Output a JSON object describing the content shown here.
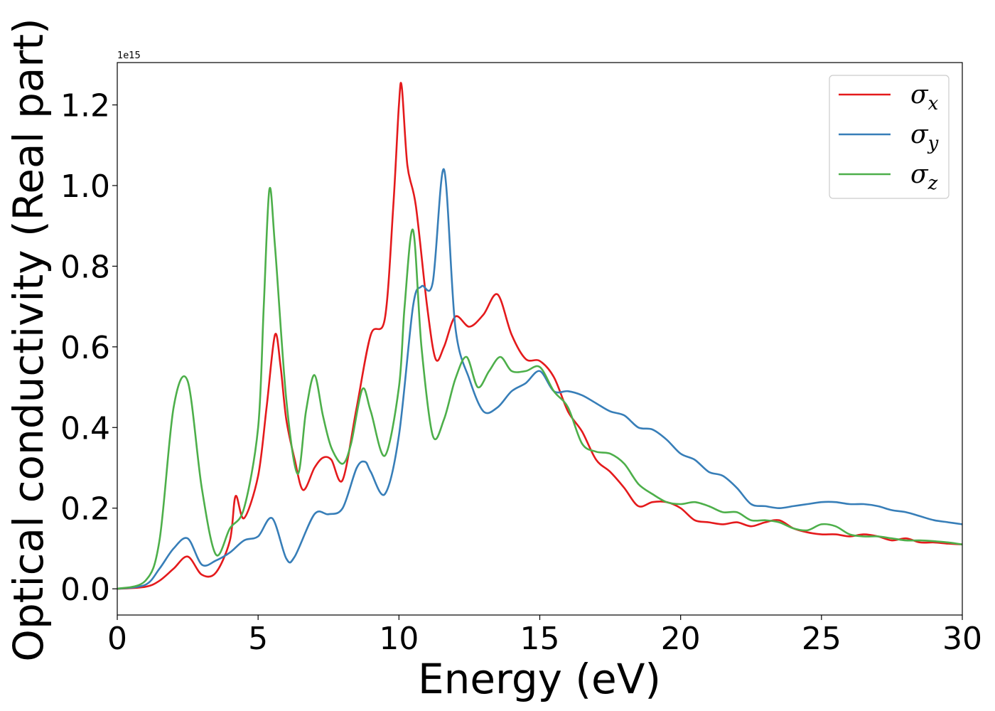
{
  "chart_data": {
    "type": "line",
    "title": "",
    "xlabel": "Energy (eV)",
    "ylabel": "Optical conductivity (Real part)",
    "y_offset_label": "1e15",
    "xlim": [
      0,
      30
    ],
    "ylim": [
      -0.065,
      1.305
    ],
    "x_ticks": [
      0,
      5,
      10,
      15,
      20,
      25,
      30
    ],
    "x_tick_labels": [
      "0",
      "5",
      "10",
      "15",
      "20",
      "25",
      "30"
    ],
    "y_ticks": [
      0.0,
      0.2,
      0.4,
      0.6,
      0.8,
      1.0,
      1.2
    ],
    "y_tick_labels": [
      "0.0",
      "0.2",
      "0.4",
      "0.6",
      "0.8",
      "1.0",
      "1.2"
    ],
    "grid": false,
    "legend_position": "top-right",
    "series": [
      {
        "name": "σx",
        "symbol": "σ",
        "subscript": "x",
        "color": "#e41a1c",
        "x": [
          0,
          1,
          1.5,
          2,
          2.5,
          3,
          3.5,
          4,
          4.2,
          4.5,
          5,
          5.3,
          5.6,
          5.8,
          6,
          6.3,
          6.6,
          7,
          7.3,
          7.6,
          8,
          8.5,
          9,
          9.5,
          9.8,
          10,
          10.1,
          10.3,
          10.6,
          11,
          11.3,
          11.6,
          12,
          12.5,
          13,
          13.5,
          14,
          14.5,
          15,
          15.5,
          16,
          16.5,
          17,
          17.5,
          18,
          18.5,
          19,
          19.5,
          20,
          20.5,
          21,
          21.5,
          22,
          22.5,
          23,
          23.5,
          24,
          24.5,
          25,
          25.5,
          26,
          26.5,
          27,
          27.5,
          28,
          28.5,
          29,
          29.5,
          30
        ],
        "y": [
          0.0,
          0.005,
          0.02,
          0.05,
          0.08,
          0.035,
          0.04,
          0.12,
          0.23,
          0.175,
          0.28,
          0.45,
          0.63,
          0.55,
          0.42,
          0.32,
          0.245,
          0.3,
          0.325,
          0.32,
          0.27,
          0.45,
          0.63,
          0.67,
          0.95,
          1.2,
          1.245,
          1.05,
          0.95,
          0.7,
          0.57,
          0.6,
          0.675,
          0.65,
          0.68,
          0.73,
          0.63,
          0.57,
          0.565,
          0.525,
          0.44,
          0.39,
          0.32,
          0.29,
          0.25,
          0.205,
          0.215,
          0.215,
          0.2,
          0.17,
          0.165,
          0.16,
          0.165,
          0.155,
          0.165,
          0.17,
          0.15,
          0.14,
          0.135,
          0.135,
          0.13,
          0.135,
          0.13,
          0.12,
          0.125,
          0.115,
          0.115,
          0.112,
          0.11
        ]
      },
      {
        "name": "σy",
        "symbol": "σ",
        "subscript": "y",
        "color": "#377eb8",
        "x": [
          0,
          1,
          1.5,
          2,
          2.5,
          3,
          3.5,
          4,
          4.5,
          5,
          5.5,
          6,
          6.3,
          7,
          7.5,
          8,
          8.5,
          8.8,
          9,
          9.5,
          10,
          10.5,
          10.8,
          11.2,
          11.6,
          12,
          12.5,
          13,
          13.5,
          14,
          14.5,
          15,
          15.5,
          16,
          16.5,
          17,
          17.5,
          18,
          18.5,
          19,
          19.5,
          20,
          20.5,
          21,
          21.5,
          22,
          22.5,
          23,
          23.5,
          24,
          24.5,
          25,
          25.5,
          26,
          26.5,
          27,
          27.5,
          28,
          28.5,
          29,
          29.5,
          30
        ],
        "y": [
          0.0,
          0.01,
          0.05,
          0.1,
          0.125,
          0.06,
          0.07,
          0.09,
          0.12,
          0.13,
          0.175,
          0.075,
          0.08,
          0.185,
          0.185,
          0.2,
          0.3,
          0.315,
          0.29,
          0.235,
          0.38,
          0.7,
          0.75,
          0.76,
          1.04,
          0.65,
          0.52,
          0.44,
          0.45,
          0.49,
          0.51,
          0.54,
          0.49,
          0.49,
          0.48,
          0.46,
          0.44,
          0.43,
          0.4,
          0.395,
          0.37,
          0.335,
          0.32,
          0.29,
          0.28,
          0.25,
          0.21,
          0.205,
          0.2,
          0.205,
          0.21,
          0.215,
          0.215,
          0.21,
          0.21,
          0.205,
          0.195,
          0.19,
          0.18,
          0.17,
          0.165,
          0.16
        ]
      },
      {
        "name": "σz",
        "symbol": "σ",
        "subscript": "z",
        "color": "#4daf4a",
        "x": [
          0,
          1,
          1.5,
          2,
          2.5,
          3,
          3.5,
          4,
          4.5,
          5,
          5.2,
          5.4,
          5.6,
          6,
          6.4,
          6.7,
          7,
          7.3,
          7.6,
          8,
          8.3,
          8.7,
          9,
          9.5,
          10,
          10.2,
          10.5,
          10.8,
          11.2,
          11.6,
          12,
          12.4,
          12.8,
          13.2,
          13.6,
          14,
          14.5,
          15,
          15.5,
          16,
          16.5,
          17,
          17.5,
          18,
          18.5,
          19,
          19.5,
          20,
          20.5,
          21,
          21.5,
          22,
          22.5,
          23,
          23.5,
          24,
          24.5,
          25,
          25.5,
          26,
          26.5,
          27,
          27.5,
          28,
          28.5,
          29,
          29.5,
          30
        ],
        "y": [
          0.0,
          0.02,
          0.12,
          0.45,
          0.515,
          0.25,
          0.085,
          0.15,
          0.2,
          0.4,
          0.7,
          0.99,
          0.85,
          0.47,
          0.285,
          0.44,
          0.53,
          0.43,
          0.35,
          0.31,
          0.36,
          0.495,
          0.44,
          0.33,
          0.5,
          0.7,
          0.89,
          0.6,
          0.38,
          0.42,
          0.52,
          0.575,
          0.5,
          0.54,
          0.575,
          0.54,
          0.54,
          0.55,
          0.49,
          0.45,
          0.36,
          0.34,
          0.335,
          0.31,
          0.26,
          0.235,
          0.215,
          0.21,
          0.215,
          0.205,
          0.19,
          0.19,
          0.17,
          0.17,
          0.165,
          0.15,
          0.145,
          0.16,
          0.155,
          0.135,
          0.13,
          0.13,
          0.125,
          0.12,
          0.12,
          0.118,
          0.115,
          0.11
        ]
      }
    ]
  }
}
